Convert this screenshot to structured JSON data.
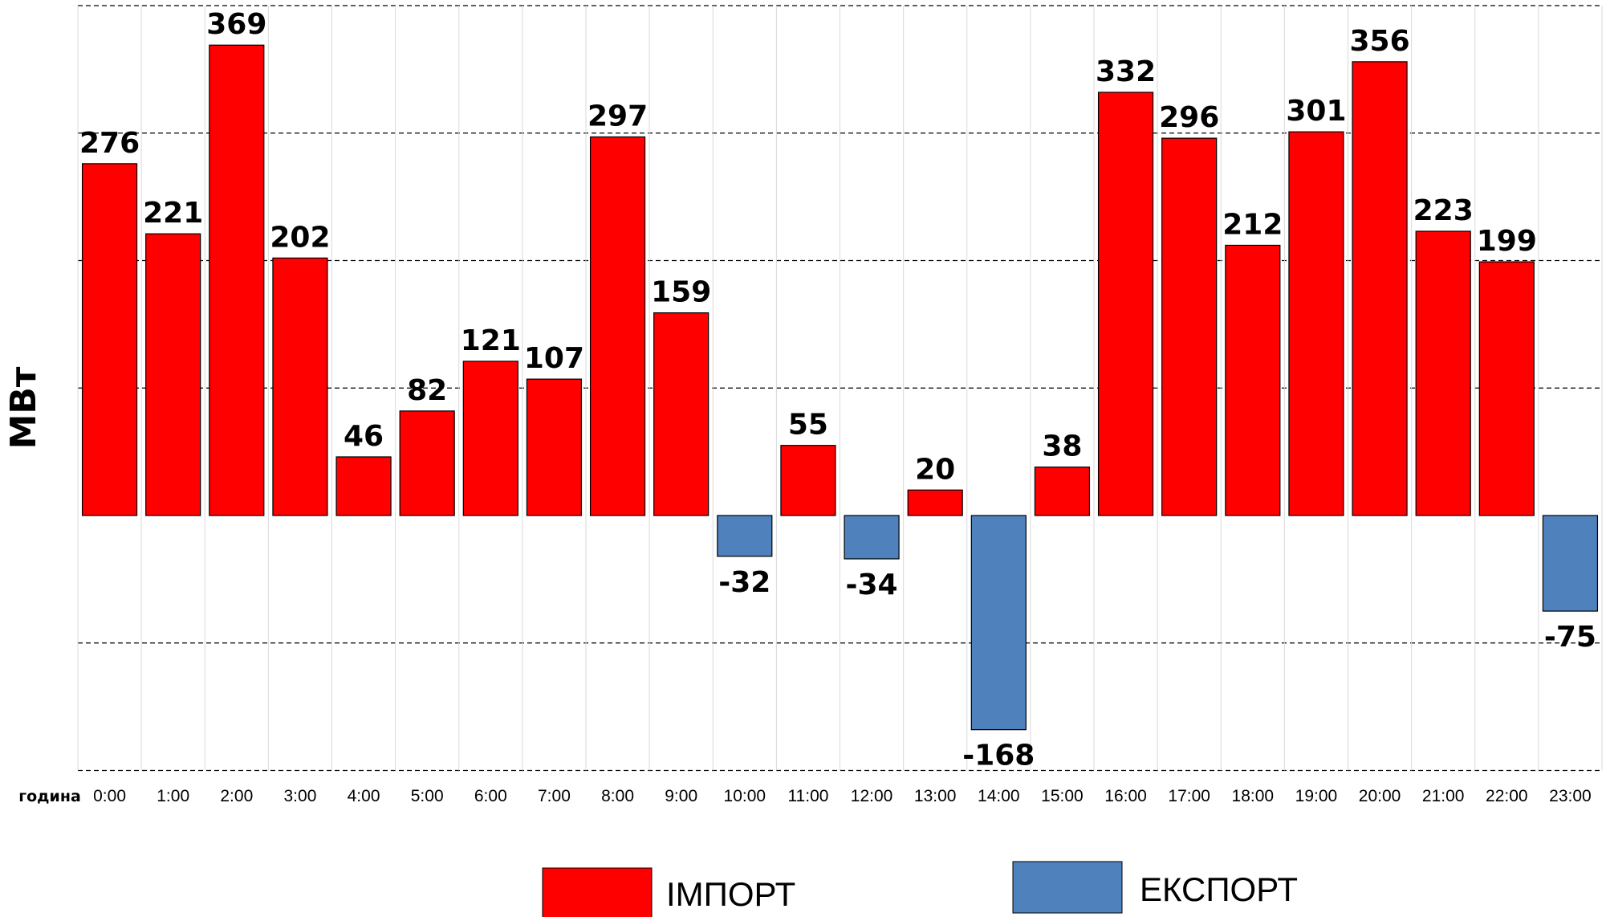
{
  "chart_data": {
    "type": "bar",
    "ylabel": "МВт",
    "xlabel": "година",
    "ylim": [
      -200,
      400
    ],
    "grid": true,
    "legend_position": "bottom",
    "categories": [
      "0:00",
      "1:00",
      "2:00",
      "3:00",
      "4:00",
      "5:00",
      "6:00",
      "7:00",
      "8:00",
      "9:00",
      "10:00",
      "11:00",
      "12:00",
      "13:00",
      "14:00",
      "15:00",
      "16:00",
      "17:00",
      "18:00",
      "19:00",
      "20:00",
      "21:00",
      "22:00",
      "23:00"
    ],
    "values": [
      276,
      221,
      369,
      202,
      46,
      82,
      121,
      107,
      297,
      159,
      -32,
      55,
      -34,
      20,
      -168,
      38,
      332,
      296,
      212,
      301,
      356,
      223,
      199,
      -75
    ],
    "series": [
      {
        "name": "ІМПОРТ",
        "color": "#ff0000"
      },
      {
        "name": "ЕКСПОРТ",
        "color": "#4f81bd"
      }
    ]
  }
}
